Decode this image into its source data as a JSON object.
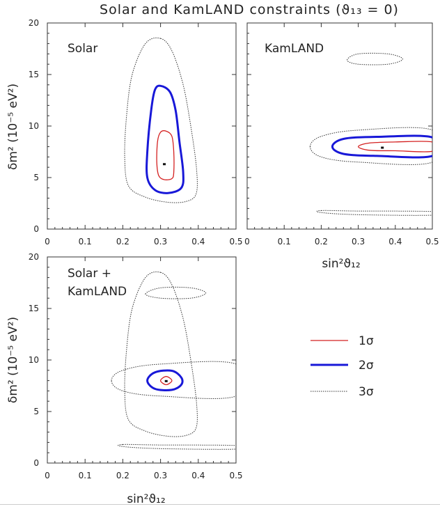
{
  "chart_data": {
    "type": "contour",
    "title": "Solar and KamLAND constraints (ϑ₁₃ = 0)",
    "xlabel": "sin²ϑ₁₂",
    "ylabel": "δm² (10⁻⁵ eV²)",
    "xlim": [
      0,
      0.5
    ],
    "ylim": [
      0,
      20
    ],
    "x_ticks": [
      "0",
      "0.1",
      "0.2",
      "0.3",
      "0.4",
      "0.5"
    ],
    "y_ticks": [
      "0",
      "5",
      "10",
      "15",
      "20"
    ],
    "legend": [
      {
        "label": "1σ",
        "color": "#d42020",
        "style": "solid"
      },
      {
        "label": "2σ",
        "color": "#1818d8",
        "style": "solid"
      },
      {
        "label": "3σ",
        "color": "#333333",
        "style": "dotted"
      }
    ],
    "panels": [
      {
        "id": "solar",
        "label": "Solar",
        "best_fit": [
          0.31,
          6.3
        ],
        "contours": [
          {
            "level": "1σ",
            "points": [
              [
                0.315,
                9.5
              ],
              [
                0.33,
                9.0
              ],
              [
                0.335,
                7.5
              ],
              [
                0.335,
                5.5
              ],
              [
                0.33,
                4.9
              ],
              [
                0.31,
                4.8
              ],
              [
                0.295,
                5.2
              ],
              [
                0.29,
                6.5
              ],
              [
                0.292,
                8.5
              ],
              [
                0.3,
                9.4
              ]
            ]
          },
          {
            "level": "2σ",
            "points": [
              [
                0.3,
                13.9
              ],
              [
                0.325,
                13.3
              ],
              [
                0.34,
                11.5
              ],
              [
                0.35,
                8.5
              ],
              [
                0.36,
                5.5
              ],
              [
                0.355,
                4.0
              ],
              [
                0.32,
                3.5
              ],
              [
                0.285,
                3.8
              ],
              [
                0.265,
                5.0
              ],
              [
                0.265,
                7.5
              ],
              [
                0.275,
                11.5
              ],
              [
                0.285,
                13.5
              ]
            ]
          },
          {
            "level": "3σ",
            "points": [
              [
                0.3,
                18.5
              ],
              [
                0.33,
                17.3
              ],
              [
                0.36,
                14.0
              ],
              [
                0.38,
                10.0
              ],
              [
                0.395,
                6.0
              ],
              [
                0.395,
                3.5
              ],
              [
                0.37,
                2.7
              ],
              [
                0.32,
                2.6
              ],
              [
                0.26,
                3.1
              ],
              [
                0.215,
                4.2
              ],
              [
                0.205,
                7.0
              ],
              [
                0.21,
                11.0
              ],
              [
                0.225,
                15.0
              ],
              [
                0.26,
                18.0
              ]
            ]
          }
        ]
      },
      {
        "id": "kamland",
        "label": "KamLAND",
        "best_fit": [
          0.365,
          7.9
        ],
        "contours": [
          {
            "level": "1σ",
            "points": [
              [
                0.3,
                8.0
              ],
              [
                0.33,
                8.35
              ],
              [
                0.4,
                8.45
              ],
              [
                0.5,
                8.45
              ],
              [
                0.5,
                7.55
              ],
              [
                0.4,
                7.6
              ],
              [
                0.33,
                7.65
              ]
            ]
          },
          {
            "level": "2σ",
            "points": [
              [
                0.23,
                8.0
              ],
              [
                0.26,
                8.75
              ],
              [
                0.35,
                8.95
              ],
              [
                0.5,
                8.9
              ],
              [
                0.5,
                7.1
              ],
              [
                0.35,
                7.1
              ],
              [
                0.26,
                7.3
              ]
            ]
          },
          {
            "level": "3σ",
            "points": [
              [
                0.17,
                8.0
              ],
              [
                0.2,
                9.0
              ],
              [
                0.3,
                9.6
              ],
              [
                0.5,
                9.6
              ],
              [
                0.5,
                6.5
              ],
              [
                0.3,
                6.5
              ],
              [
                0.2,
                7.0
              ]
            ]
          },
          {
            "level": "3σ",
            "points": [
              [
                0.27,
                16.4
              ],
              [
                0.3,
                17.0
              ],
              [
                0.38,
                17.0
              ],
              [
                0.42,
                16.5
              ],
              [
                0.38,
                16.0
              ],
              [
                0.3,
                16.0
              ]
            ]
          },
          {
            "level": "3σ",
            "points": [
              [
                0.2,
                1.8
              ],
              [
                0.3,
                1.75
              ],
              [
                0.5,
                1.7
              ],
              [
                0.5,
                1.35
              ],
              [
                0.3,
                1.4
              ],
              [
                0.2,
                1.6
              ]
            ]
          }
        ]
      },
      {
        "id": "combined",
        "label": "Solar + KamLAND",
        "best_fit": [
          0.315,
          7.95
        ],
        "contours": [
          {
            "level": "1σ",
            "points": [
              [
                0.3,
                8.0
              ],
              [
                0.315,
                8.4
              ],
              [
                0.33,
                8.0
              ],
              [
                0.315,
                7.6
              ]
            ]
          },
          {
            "level": "2σ",
            "points": [
              [
                0.265,
                8.0
              ],
              [
                0.285,
                8.8
              ],
              [
                0.33,
                8.95
              ],
              [
                0.355,
                8.3
              ],
              [
                0.355,
                7.6
              ],
              [
                0.33,
                7.1
              ],
              [
                0.285,
                7.2
              ]
            ]
          },
          {
            "level": "3σ",
            "points": [
              [
                0.3,
                18.5
              ],
              [
                0.33,
                17.3
              ],
              [
                0.36,
                14.0
              ],
              [
                0.38,
                10.0
              ],
              [
                0.395,
                6.0
              ],
              [
                0.395,
                3.5
              ],
              [
                0.37,
                2.7
              ],
              [
                0.32,
                2.6
              ],
              [
                0.26,
                3.1
              ],
              [
                0.215,
                4.2
              ],
              [
                0.205,
                7.0
              ],
              [
                0.21,
                11.0
              ],
              [
                0.225,
                15.0
              ],
              [
                0.26,
                18.0
              ]
            ]
          },
          {
            "level": "3σ",
            "points": [
              [
                0.17,
                8.0
              ],
              [
                0.2,
                9.0
              ],
              [
                0.3,
                9.6
              ],
              [
                0.5,
                9.6
              ],
              [
                0.5,
                6.5
              ],
              [
                0.3,
                6.5
              ],
              [
                0.2,
                7.0
              ]
            ]
          },
          {
            "level": "3σ",
            "points": [
              [
                0.26,
                16.4
              ],
              [
                0.3,
                17.0
              ],
              [
                0.38,
                17.0
              ],
              [
                0.42,
                16.5
              ],
              [
                0.38,
                16.0
              ],
              [
                0.3,
                16.0
              ]
            ]
          },
          {
            "level": "3σ",
            "points": [
              [
                0.2,
                1.8
              ],
              [
                0.3,
                1.75
              ],
              [
                0.5,
                1.7
              ],
              [
                0.5,
                1.35
              ],
              [
                0.3,
                1.4
              ],
              [
                0.2,
                1.6
              ]
            ]
          }
        ]
      }
    ]
  }
}
